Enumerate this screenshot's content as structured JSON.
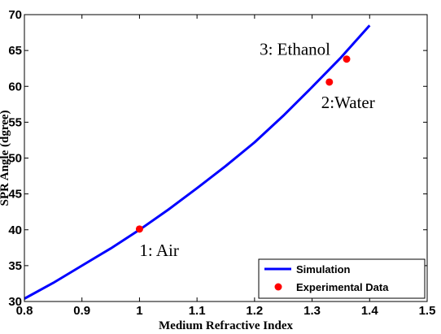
{
  "chart_data": {
    "type": "line",
    "xlabel": "Medium Refractive Index",
    "ylabel": "SPR Angle (dgree)",
    "xlim": [
      0.8,
      1.5
    ],
    "ylim": [
      30,
      70
    ],
    "xticks": [
      0.8,
      0.9,
      1.0,
      1.1,
      1.2,
      1.3,
      1.4,
      1.5
    ],
    "xtick_labels": [
      "0.8",
      "0.9",
      "1",
      "1.1",
      "1.2",
      "1.3",
      "1.4",
      "1.5"
    ],
    "yticks": [
      30,
      35,
      40,
      45,
      50,
      55,
      60,
      65,
      70
    ],
    "ytick_labels": [
      "30",
      "35",
      "40",
      "45",
      "50",
      "55",
      "60",
      "65",
      "70"
    ],
    "grid": false,
    "legend_position": "bottom-right",
    "series": [
      {
        "name": "Simulation",
        "kind": "line",
        "color": "#0000ff",
        "x": [
          0.8,
          0.85,
          0.9,
          0.95,
          1.0,
          1.05,
          1.1,
          1.15,
          1.2,
          1.25,
          1.3,
          1.35,
          1.4
        ],
        "y": [
          30.4,
          32.6,
          35.0,
          37.4,
          40.0,
          42.8,
          45.8,
          48.9,
          52.2,
          55.9,
          59.9,
          64.0,
          68.5
        ]
      },
      {
        "name": "Experimental Data",
        "kind": "scatter",
        "color": "#ff0000",
        "x": [
          1.0,
          1.33,
          1.36
        ],
        "y": [
          40.1,
          60.6,
          63.8
        ]
      }
    ],
    "annotations": [
      {
        "text": "1: Air",
        "x": 1.0,
        "y": 40.1
      },
      {
        "text": "2:Water",
        "x": 1.33,
        "y": 60.6
      },
      {
        "text": "3: Ethanol",
        "x": 1.36,
        "y": 63.8
      }
    ]
  }
}
